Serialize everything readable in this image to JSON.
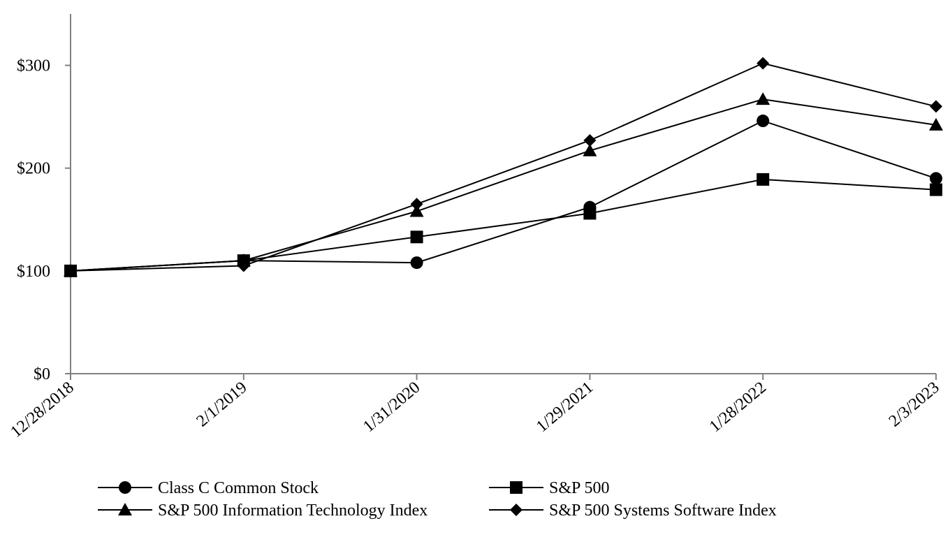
{
  "chart_data": {
    "type": "line",
    "title": "",
    "xlabel": "",
    "ylabel": "",
    "categories": [
      "12/28/2018",
      "2/1/2019",
      "1/31/2020",
      "1/29/2021",
      "1/28/2022",
      "2/3/2023"
    ],
    "ylim": [
      0,
      350
    ],
    "yticks": [
      {
        "value": 0,
        "label": "$0"
      },
      {
        "value": 100,
        "label": "$100"
      },
      {
        "value": 200,
        "label": "$200"
      },
      {
        "value": 300,
        "label": "$300"
      }
    ],
    "grid": false,
    "legend_position": "bottom",
    "series": [
      {
        "name": "Class C Common Stock",
        "marker": "circle",
        "values": [
          100,
          110,
          108,
          162,
          246,
          190
        ]
      },
      {
        "name": "S&P 500",
        "marker": "square",
        "values": [
          100,
          110,
          133,
          156,
          189,
          179
        ]
      },
      {
        "name": "S&P 500 Information Technology Index",
        "marker": "triangle",
        "values": [
          100,
          110,
          158,
          217,
          267,
          242
        ]
      },
      {
        "name": "S&P 500 Systems Software Index",
        "marker": "diamond",
        "values": [
          100,
          105,
          165,
          227,
          302,
          260
        ]
      }
    ],
    "colors": {
      "line": "#000000",
      "axis": "#808080"
    }
  }
}
